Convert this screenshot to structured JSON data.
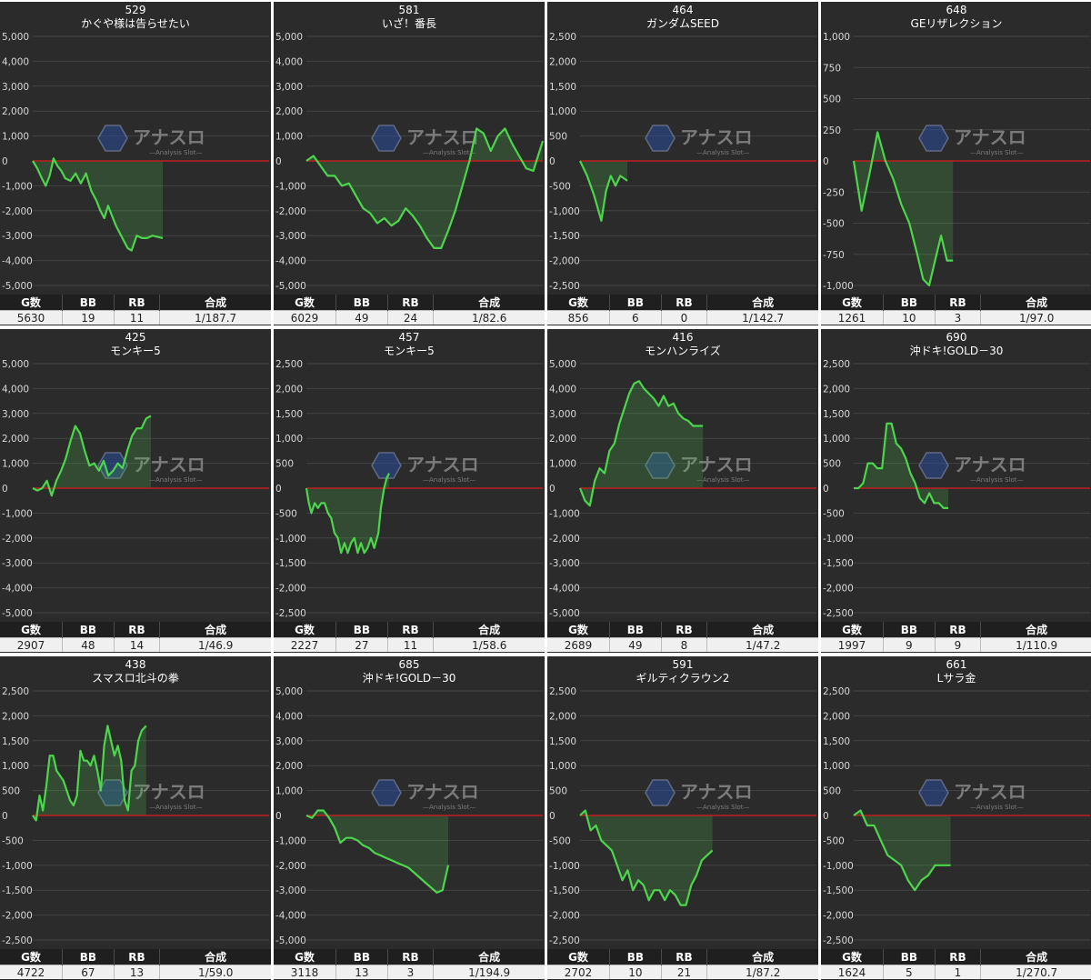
{
  "colors": {
    "line": "#4cd64c",
    "area": "rgba(76,190,76,0.22)",
    "zero": "#c02020",
    "grid": "#444444",
    "tick": "#d8d8d8"
  },
  "watermark": {
    "text": "アナスロ",
    "sub": "—Analysis Slot—",
    "icon": "hexagon-logo-icon"
  },
  "headers": {
    "g": "G数",
    "bb": "BB",
    "rb": "RB",
    "total": "合成"
  },
  "panels": [
    {
      "number": "529",
      "name": "かぐや様は告らせたい",
      "g": "5630",
      "bb": "19",
      "rb": "11",
      "total": "1/187.7"
    },
    {
      "number": "581",
      "name": "いざ！番長",
      "g": "6029",
      "bb": "49",
      "rb": "24",
      "total": "1/82.6"
    },
    {
      "number": "464",
      "name": "ガンダムSEED",
      "g": "856",
      "bb": "6",
      "rb": "0",
      "total": "1/142.7"
    },
    {
      "number": "648",
      "name": "GEリザレクション",
      "g": "1261",
      "bb": "10",
      "rb": "3",
      "total": "1/97.0"
    },
    {
      "number": "425",
      "name": "モンキー5",
      "g": "2907",
      "bb": "48",
      "rb": "14",
      "total": "1/46.9"
    },
    {
      "number": "457",
      "name": "モンキー5",
      "g": "2227",
      "bb": "27",
      "rb": "11",
      "total": "1/58.6"
    },
    {
      "number": "416",
      "name": "モンハンライズ",
      "g": "2689",
      "bb": "49",
      "rb": "8",
      "total": "1/47.2"
    },
    {
      "number": "690",
      "name": "沖ドキ!GOLD－30",
      "g": "1997",
      "bb": "9",
      "rb": "9",
      "total": "1/110.9"
    },
    {
      "number": "438",
      "name": "スマスロ北斗の拳",
      "g": "4722",
      "bb": "67",
      "rb": "13",
      "total": "1/59.0"
    },
    {
      "number": "685",
      "name": "沖ドキ!GOLD－30",
      "g": "3118",
      "bb": "13",
      "rb": "3",
      "total": "1/194.9"
    },
    {
      "number": "591",
      "name": "ギルティクラウン2",
      "g": "2702",
      "bb": "10",
      "rb": "21",
      "total": "1/87.2"
    },
    {
      "number": "661",
      "name": "Lサラ金",
      "g": "1624",
      "bb": "5",
      "rb": "1",
      "total": "1/270.7"
    }
  ],
  "chart_data": [
    {
      "type": "area",
      "ylim": [
        -5000,
        5000
      ],
      "yticks": [
        "5,000",
        "4,000",
        "3,000",
        "2,000",
        "1,000",
        "0",
        "-1,000",
        "-2,000",
        "-3,000",
        "-4,000",
        "-5,000"
      ],
      "x": [
        0,
        0.035,
        0.07,
        0.1,
        0.13,
        0.16,
        0.19,
        0.22,
        0.25,
        0.29,
        0.33,
        0.37,
        0.41,
        0.45,
        0.49,
        0.52,
        0.55,
        0.58,
        0.61,
        0.64,
        0.67,
        0.7,
        0.73,
        0.76,
        0.8,
        0.84,
        0.88,
        0.92,
        0.96,
        1
      ],
      "y": [
        0,
        -300,
        -700,
        -1000,
        -600,
        100,
        -200,
        -400,
        -700,
        -800,
        -500,
        -900,
        -500,
        -1200,
        -1600,
        -2000,
        -2300,
        -1800,
        -2200,
        -2600,
        -2900,
        -3200,
        -3500,
        -3600,
        -3000,
        -3100,
        -3100,
        -3000,
        -3050,
        -3100
      ],
      "x_end": 0.55
    },
    {
      "type": "area",
      "ylim": [
        -5000,
        5000
      ],
      "yticks": [
        "5,000",
        "4,000",
        "3,000",
        "2,000",
        "1,000",
        "0",
        "-1,000",
        "-2,000",
        "-3,000",
        "-4,000",
        "-5,000"
      ],
      "x": [
        0,
        0.03,
        0.06,
        0.09,
        0.12,
        0.15,
        0.18,
        0.21,
        0.24,
        0.27,
        0.3,
        0.33,
        0.36,
        0.39,
        0.42,
        0.45,
        0.48,
        0.51,
        0.54,
        0.57,
        0.6,
        0.63,
        0.66,
        0.69,
        0.72,
        0.75,
        0.78,
        0.81,
        0.84,
        0.87,
        0.9,
        0.93,
        0.96,
        1
      ],
      "y": [
        0,
        200,
        -200,
        -600,
        -600,
        -1000,
        -900,
        -1400,
        -1900,
        -2100,
        -2500,
        -2300,
        -2600,
        -2400,
        -1900,
        -2200,
        -2600,
        -3100,
        -3500,
        -3500,
        -2800,
        -2000,
        -1000,
        0,
        1300,
        1100,
        400,
        1000,
        1300,
        700,
        200,
        -300,
        -400,
        800
      ],
      "x_end": 1
    },
    {
      "type": "area",
      "ylim": [
        -2500,
        2500
      ],
      "yticks": [
        "2,500",
        "2,000",
        "1,500",
        "1,000",
        "500",
        "0",
        "-500",
        "-1,000",
        "-1,500",
        "-2,000",
        "-2,500"
      ],
      "x": [
        0,
        0.15,
        0.3,
        0.45,
        0.55,
        0.65,
        0.75,
        0.85,
        1
      ],
      "y": [
        0,
        -300,
        -700,
        -1200,
        -600,
        -300,
        -500,
        -300,
        -400
      ],
      "x_end": 0.2
    },
    {
      "type": "area",
      "ylim": [
        -1000,
        1000
      ],
      "yticks": [
        "1,000",
        "750",
        "500",
        "250",
        "0",
        "-250",
        "-500",
        "-750",
        "-1,000"
      ],
      "x": [
        0,
        0.08,
        0.16,
        0.24,
        0.32,
        0.4,
        0.48,
        0.56,
        0.64,
        0.7,
        0.76,
        0.82,
        0.88,
        0.94,
        1
      ],
      "y": [
        0,
        -400,
        -100,
        230,
        0,
        -150,
        -350,
        -500,
        -750,
        -950,
        -1000,
        -800,
        -600,
        -800,
        -800
      ],
      "x_end": 0.42
    },
    {
      "type": "area",
      "ylim": [
        -5000,
        5000
      ],
      "yticks": [
        "5,000",
        "4,000",
        "3,000",
        "2,000",
        "1,000",
        "0",
        "-1,000",
        "-2,000",
        "-3,000",
        "-4,000",
        "-5,000"
      ],
      "x": [
        0,
        0.04,
        0.08,
        0.12,
        0.16,
        0.2,
        0.24,
        0.28,
        0.32,
        0.36,
        0.4,
        0.44,
        0.48,
        0.52,
        0.56,
        0.6,
        0.64,
        0.68,
        0.72,
        0.76,
        0.8,
        0.84,
        0.88,
        0.92,
        0.96,
        1
      ],
      "y": [
        0,
        -100,
        0,
        300,
        -300,
        300,
        700,
        1200,
        1900,
        2500,
        2200,
        1500,
        900,
        1000,
        700,
        1100,
        500,
        700,
        1000,
        800,
        1500,
        2100,
        2400,
        2400,
        2800,
        2900
      ],
      "x_end": 0.5
    },
    {
      "type": "area",
      "ylim": [
        -2500,
        2500
      ],
      "yticks": [
        "2,500",
        "2,000",
        "1,500",
        "1,000",
        "500",
        "0",
        "-500",
        "-1,000",
        "-1,500",
        "-2,000",
        "-2,500"
      ],
      "x": [
        0,
        0.03,
        0.06,
        0.1,
        0.14,
        0.18,
        0.22,
        0.26,
        0.3,
        0.34,
        0.38,
        0.42,
        0.46,
        0.5,
        0.54,
        0.58,
        0.62,
        0.66,
        0.7,
        0.74,
        0.78,
        0.82,
        0.87,
        0.9,
        0.94,
        0.97,
        1
      ],
      "y": [
        0,
        -300,
        -500,
        -300,
        -400,
        -300,
        -300,
        -500,
        -600,
        -900,
        -1000,
        -1300,
        -1100,
        -1300,
        -1100,
        -1000,
        -1300,
        -1100,
        -1300,
        -1200,
        -1000,
        -1200,
        -900,
        -400,
        0,
        200,
        300
      ],
      "x_end": 0.35
    },
    {
      "type": "area",
      "ylim": [
        -5000,
        5000
      ],
      "yticks": [
        "5,000",
        "4,000",
        "3,000",
        "2,000",
        "1,000",
        "0",
        "-1,000",
        "-2,000",
        "-3,000",
        "-4,000",
        "-5,000"
      ],
      "x": [
        0,
        0.04,
        0.08,
        0.12,
        0.16,
        0.2,
        0.24,
        0.28,
        0.32,
        0.36,
        0.4,
        0.44,
        0.48,
        0.52,
        0.56,
        0.6,
        0.64,
        0.68,
        0.72,
        0.76,
        0.8,
        0.84,
        0.88,
        0.92,
        0.96,
        1
      ],
      "y": [
        0,
        -500,
        -700,
        300,
        800,
        600,
        1500,
        1800,
        2600,
        3200,
        3800,
        4200,
        4300,
        4000,
        3800,
        3600,
        3300,
        3700,
        3300,
        3400,
        3000,
        2800,
        2700,
        2500,
        2500,
        2500
      ],
      "x_end": 0.52
    },
    {
      "type": "area",
      "ylim": [
        -2500,
        2500
      ],
      "yticks": [
        "2,500",
        "2,000",
        "1,500",
        "1,000",
        "500",
        "0",
        "-500",
        "-1,000",
        "-1,500",
        "-2,000",
        "-2,500"
      ],
      "x": [
        0,
        0.05,
        0.1,
        0.15,
        0.2,
        0.25,
        0.3,
        0.35,
        0.4,
        0.45,
        0.5,
        0.55,
        0.6,
        0.65,
        0.7,
        0.75,
        0.8,
        0.85,
        0.9,
        0.95,
        1
      ],
      "y": [
        0,
        0,
        100,
        500,
        500,
        400,
        400,
        1300,
        1300,
        900,
        800,
        600,
        300,
        100,
        -200,
        -300,
        -100,
        -300,
        -300,
        -400,
        -400
      ],
      "x_end": 0.4
    },
    {
      "type": "area",
      "ylim": [
        -2500,
        2500
      ],
      "yticks": [
        "2,500",
        "2,000",
        "1,500",
        "1,000",
        "500",
        "0",
        "-500",
        "-1,000",
        "-1,500",
        "-2,000",
        "-2,500"
      ],
      "x": [
        0,
        0.03,
        0.06,
        0.09,
        0.12,
        0.15,
        0.18,
        0.21,
        0.24,
        0.27,
        0.3,
        0.33,
        0.36,
        0.39,
        0.42,
        0.45,
        0.48,
        0.51,
        0.54,
        0.57,
        0.6,
        0.63,
        0.66,
        0.69,
        0.72,
        0.75,
        0.78,
        0.81,
        0.84,
        0.87,
        0.9,
        0.93,
        0.96,
        1
      ],
      "y": [
        0,
        -100,
        400,
        100,
        600,
        1200,
        1200,
        900,
        800,
        700,
        500,
        300,
        200,
        400,
        1300,
        1100,
        1100,
        1000,
        1200,
        900,
        500,
        1400,
        1800,
        1500,
        1200,
        1400,
        1100,
        300,
        100,
        900,
        1000,
        1500,
        1700,
        1800
      ],
      "x_end": 0.48
    },
    {
      "type": "area",
      "ylim": [
        -5000,
        5000
      ],
      "yticks": [
        "5,000",
        "4,000",
        "3,000",
        "2,000",
        "1,000",
        "0",
        "-1,000",
        "-2,000",
        "-3,000",
        "-4,000",
        "-5,000"
      ],
      "x": [
        0,
        0.04,
        0.08,
        0.12,
        0.16,
        0.2,
        0.24,
        0.28,
        0.32,
        0.36,
        0.4,
        0.44,
        0.48,
        0.52,
        0.56,
        0.6,
        0.64,
        0.68,
        0.72,
        0.76,
        0.8,
        0.84,
        0.88,
        0.92,
        0.96,
        1
      ],
      "y": [
        0,
        -100,
        200,
        200,
        -100,
        -500,
        -1100,
        -900,
        -900,
        -1000,
        -1200,
        -1300,
        -1500,
        -1600,
        -1700,
        -1800,
        -1900,
        -2000,
        -2100,
        -2300,
        -2500,
        -2700,
        -2900,
        -3100,
        -3000,
        -2000
      ],
      "x_end": 0.6
    },
    {
      "type": "area",
      "ylim": [
        -2500,
        2500
      ],
      "yticks": [
        "2,500",
        "2,000",
        "1,500",
        "1,000",
        "500",
        "0",
        "-500",
        "-1,000",
        "-1,500",
        "-2,000",
        "-2,500"
      ],
      "x": [
        0,
        0.04,
        0.08,
        0.12,
        0.16,
        0.2,
        0.24,
        0.28,
        0.32,
        0.36,
        0.4,
        0.44,
        0.48,
        0.52,
        0.56,
        0.6,
        0.64,
        0.68,
        0.72,
        0.76,
        0.8,
        0.84,
        0.88,
        0.92,
        0.96,
        1
      ],
      "y": [
        0,
        100,
        -300,
        -200,
        -500,
        -600,
        -700,
        -1000,
        -1300,
        -1100,
        -1500,
        -1300,
        -1400,
        -1700,
        -1500,
        -1500,
        -1700,
        -1500,
        -1600,
        -1800,
        -1800,
        -1400,
        -1200,
        -900,
        -800,
        -700
      ],
      "x_end": 0.56
    },
    {
      "type": "area",
      "ylim": [
        -2500,
        2500
      ],
      "yticks": [
        "2,500",
        "2,000",
        "1,500",
        "1,000",
        "500",
        "0",
        "-500",
        "-1,000",
        "-1,500",
        "-2,000",
        "-2,500"
      ],
      "x": [
        0,
        0.07,
        0.14,
        0.21,
        0.28,
        0.35,
        0.42,
        0.49,
        0.56,
        0.63,
        0.7,
        0.77,
        0.84,
        0.91,
        1
      ],
      "y": [
        0,
        100,
        -200,
        -200,
        -500,
        -800,
        -900,
        -1000,
        -1300,
        -1500,
        -1300,
        -1200,
        -1000,
        -1000,
        -1000
      ],
      "x_end": 0.41
    }
  ]
}
